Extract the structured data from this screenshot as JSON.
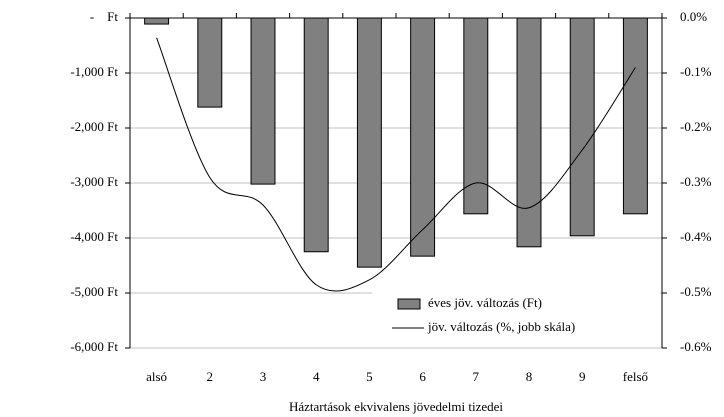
{
  "chart_data": {
    "type": "bar",
    "x_label": "Háztartások ekvivalens jövedelmi tizedei",
    "categories": [
      "alsó",
      "2",
      "3",
      "4",
      "5",
      "6",
      "7",
      "8",
      "9",
      "felső"
    ],
    "series": [
      {
        "name": "éves jöv. változás (Ft)",
        "type": "bar",
        "axis": "y",
        "color": "#808080",
        "values": [
          -110,
          -1620,
          -3020,
          -4250,
          -4530,
          -4330,
          -3560,
          -4160,
          -3960,
          -3560
        ]
      },
      {
        "name": "jöv. változás (%, jobb skála)",
        "type": "line",
        "axis": "y2",
        "color": "#000000",
        "values": [
          -0.036,
          -0.29,
          -0.34,
          -0.485,
          -0.476,
          -0.385,
          -0.3,
          -0.345,
          -0.24,
          -0.09
        ]
      }
    ],
    "ylim": [
      -6000,
      0
    ],
    "yticks": [
      {
        "value": 0,
        "label": "-    Ft"
      },
      {
        "value": -1000,
        "label": "-1,000 Ft"
      },
      {
        "value": -2000,
        "label": "-2,000 Ft"
      },
      {
        "value": -3000,
        "label": "-3,000 Ft"
      },
      {
        "value": -4000,
        "label": "-4,000 Ft"
      },
      {
        "value": -5000,
        "label": "-5,000 Ft"
      },
      {
        "value": -6000,
        "label": "-6,000 Ft"
      }
    ],
    "y2lim": [
      -0.6,
      0
    ],
    "y2ticks": [
      {
        "value": 0,
        "label": "0.0%"
      },
      {
        "value": -0.1,
        "label": "-0.1%"
      },
      {
        "value": -0.2,
        "label": "-0.2%"
      },
      {
        "value": -0.3,
        "label": "-0.3%"
      },
      {
        "value": -0.4,
        "label": "-0.4%"
      },
      {
        "value": -0.5,
        "label": "-0.5%"
      },
      {
        "value": -0.6,
        "label": "-0.6%"
      }
    ],
    "grid": true,
    "legend": "lower right"
  }
}
